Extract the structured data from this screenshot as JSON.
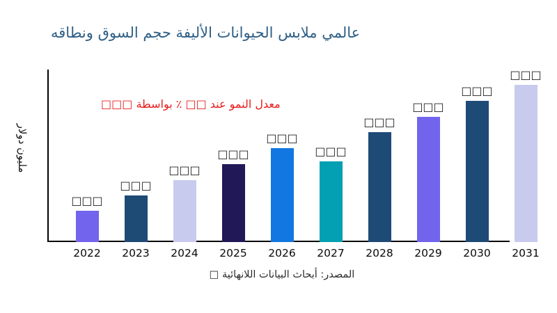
{
  "title": "عالمي ملابس الحيوانات الأليفة حجم السوق ونطاقه",
  "annotation": "معدل النمو عند □□ ٪ بواسطة □□□",
  "ylabel": "مليون دولار",
  "source": "المصدر: أبحاث البيانات اللانهائية □",
  "colors": {
    "title": "#2e5f86",
    "annotation": "#e81c1c",
    "axis": "#000000",
    "tick_text": "#0a0a0a",
    "value_label_text": "#1f1f1f"
  },
  "chart_data": {
    "type": "bar",
    "title": "عالمي ملابس الحيوانات الأليفة حجم السوق ونطاقه",
    "xlabel": "",
    "ylabel": "مليون دولار",
    "categories": [
      "2022",
      "2023",
      "2024",
      "2025",
      "2026",
      "2027",
      "2028",
      "2029",
      "2030",
      "2031"
    ],
    "values": [
      45,
      67,
      89,
      112,
      135,
      116,
      158,
      180,
      203,
      226
    ],
    "units": "relative bar heights (numeric data labels unreadable in source image — shown as placeholder boxes)",
    "value_labels": [
      "□□□",
      "□□□",
      "□□□",
      "□□□",
      "□□□",
      "□□□",
      "□□□",
      "□□□",
      "□□□",
      "□□□"
    ],
    "bar_colors": [
      "#7264ec",
      "#1e4a76",
      "#c8cbee",
      "#211857",
      "#1277e0",
      "#02a0b2",
      "#1e4a76",
      "#7264ec",
      "#1e4a76",
      "#c8cbee"
    ],
    "ylim": [
      0,
      250
    ],
    "grid": false,
    "legend": "none",
    "annotations": [
      "معدل النمو عند □□ ٪ بواسطة □□□"
    ]
  }
}
